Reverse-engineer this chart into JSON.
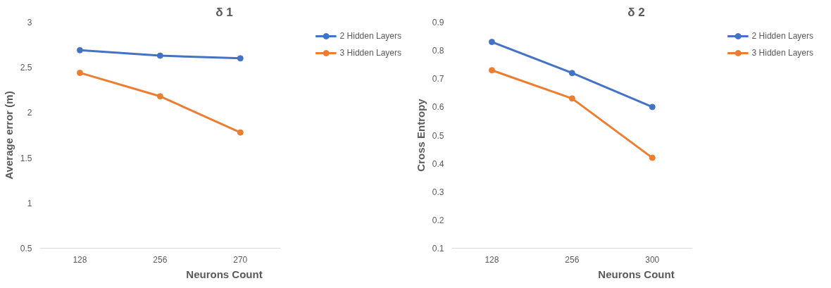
{
  "chart_data": [
    {
      "type": "line",
      "title": "δ 1",
      "xlabel": "Neurons Count",
      "ylabel": "Average error (m)",
      "categories": [
        "128",
        "256",
        "270"
      ],
      "ylim": [
        0.5,
        3
      ],
      "yticks": [
        0.5,
        1,
        1.5,
        2,
        2.5,
        3
      ],
      "grid": false,
      "legend": "top right",
      "marker": "circle",
      "series": [
        {
          "name": "2 Hidden Layers",
          "color": "#4472c4",
          "values": [
            2.69,
            2.63,
            2.6
          ]
        },
        {
          "name": "3 Hidden Layers",
          "color": "#ed7d31",
          "values": [
            2.44,
            2.18,
            1.78
          ]
        }
      ]
    },
    {
      "type": "line",
      "title": "δ 2",
      "xlabel": "Neurons Count",
      "ylabel": "Cross Entropy",
      "categories": [
        "128",
        "256",
        "300"
      ],
      "ylim": [
        0.1,
        0.9
      ],
      "yticks": [
        0.1,
        0.2,
        0.3,
        0.4,
        0.5,
        0.6,
        0.7,
        0.8,
        0.9
      ],
      "grid": false,
      "legend": "top right",
      "marker": "circle",
      "series": [
        {
          "name": "2 Hidden Layers",
          "color": "#4472c4",
          "values": [
            0.83,
            0.72,
            0.6
          ]
        },
        {
          "name": "3 Hidden Layers",
          "color": "#ed7d31",
          "values": [
            0.73,
            0.63,
            0.42
          ]
        }
      ]
    }
  ]
}
